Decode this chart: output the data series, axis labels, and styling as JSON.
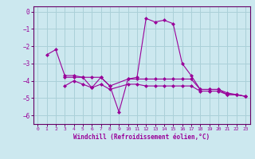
{
  "xlabel": "Windchill (Refroidissement éolien,°C)",
  "background_color": "#cce8ef",
  "grid_color": "#aad0d8",
  "line_color": "#990099",
  "spine_color": "#660066",
  "xlim": [
    -0.5,
    23.5
  ],
  "ylim": [
    -6.5,
    0.3
  ],
  "yticks": [
    0,
    -1,
    -2,
    -3,
    -4,
    -5,
    -6
  ],
  "xticks": [
    0,
    1,
    2,
    3,
    4,
    5,
    6,
    7,
    8,
    9,
    10,
    11,
    12,
    13,
    14,
    15,
    16,
    17,
    18,
    19,
    20,
    21,
    22,
    23
  ],
  "series": [
    [
      null,
      -2.5,
      -2.2,
      -3.7,
      -3.7,
      -3.8,
      -4.4,
      -3.8,
      -4.3,
      -5.8,
      -3.9,
      -3.8,
      -0.4,
      -0.6,
      -0.5,
      -0.7,
      -3.0,
      -3.7,
      -4.5,
      -4.5,
      -4.5,
      -4.7,
      -4.8,
      -4.9
    ],
    [
      null,
      null,
      null,
      -3.8,
      -3.8,
      -3.8,
      -3.8,
      -3.8,
      -4.3,
      null,
      -3.9,
      -3.9,
      -3.9,
      -3.9,
      -3.9,
      -3.9,
      -3.9,
      -3.9,
      -4.5,
      -4.5,
      -4.5,
      -4.8,
      -4.8,
      -4.9
    ],
    [
      null,
      null,
      null,
      -4.3,
      -4.0,
      -4.2,
      -4.4,
      -4.2,
      -4.5,
      null,
      -4.2,
      -4.2,
      -4.3,
      -4.3,
      -4.3,
      -4.3,
      -4.3,
      -4.3,
      -4.6,
      -4.6,
      -4.6,
      -4.8,
      -4.8,
      -4.9
    ]
  ]
}
